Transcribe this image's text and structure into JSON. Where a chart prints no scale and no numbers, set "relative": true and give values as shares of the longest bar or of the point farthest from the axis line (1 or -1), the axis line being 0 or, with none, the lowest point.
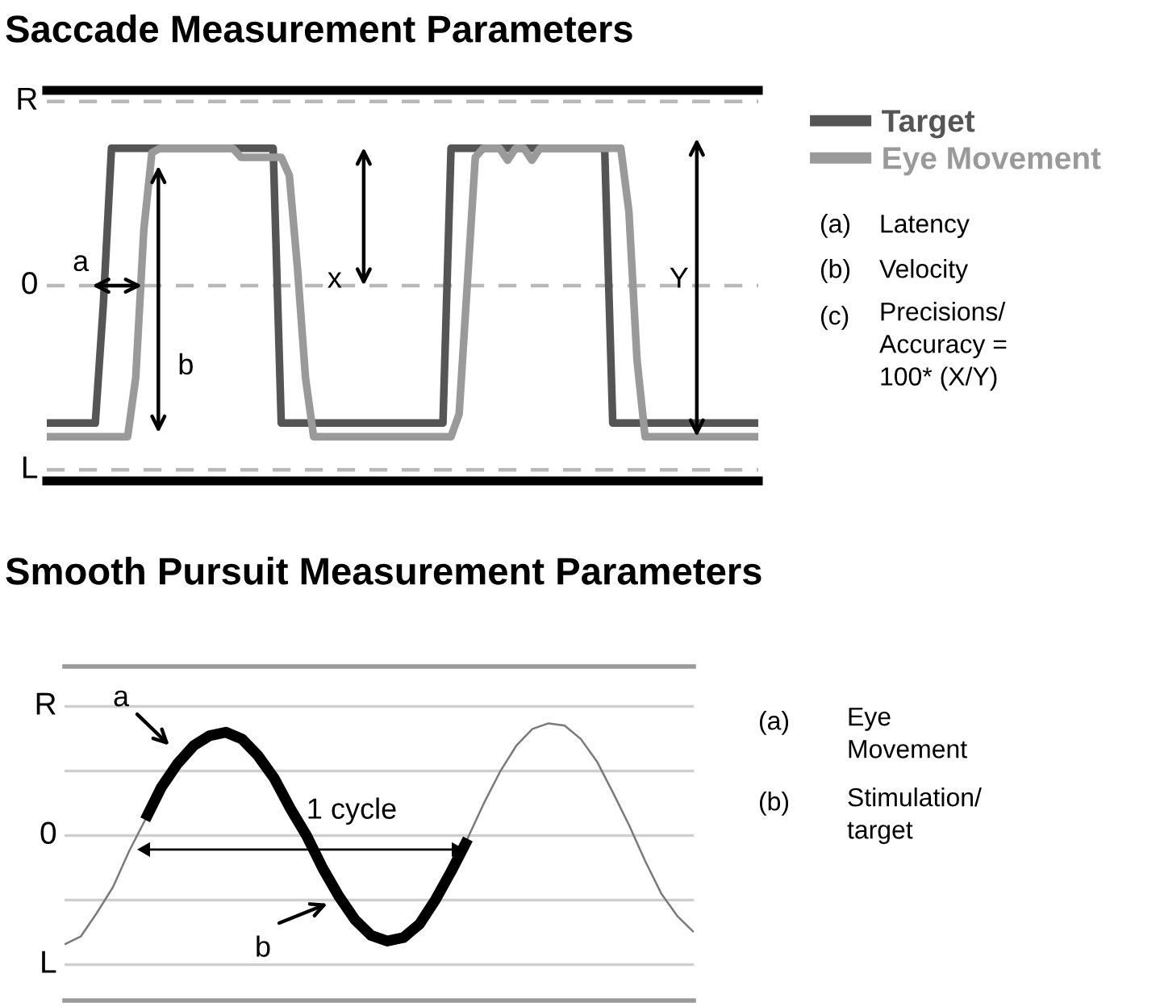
{
  "chart_data": [
    {
      "type": "line",
      "title": "Saccade Measurement Parameters",
      "relative": true,
      "categories": [
        null,
        null,
        null,
        null,
        null,
        null,
        null,
        null,
        null,
        null,
        null,
        null,
        null,
        null,
        null,
        null,
        null,
        null,
        null,
        null,
        null,
        null,
        null,
        null,
        null,
        null,
        null,
        null,
        null,
        null,
        null,
        null,
        null,
        null,
        null,
        null,
        null,
        null,
        null,
        null,
        null,
        null,
        null,
        null,
        null,
        null,
        null,
        null,
        null,
        null,
        null,
        null,
        null,
        null,
        null,
        null,
        null,
        null,
        null,
        null,
        null,
        null,
        null,
        null,
        null,
        null,
        null,
        null,
        null,
        null,
        null,
        null,
        null,
        null,
        null,
        null,
        null,
        null,
        null,
        null,
        null,
        null,
        null,
        null,
        null,
        null,
        null,
        null,
        null
      ],
      "series": [
        {
          "name": "Target",
          "color": "#555555",
          "values": [
            -0.91,
            -0.91,
            -0.91,
            -0.91,
            -0.91,
            -0.91,
            -0.91,
            -0.12,
            0.91,
            0.91,
            0.91,
            0.91,
            0.91,
            0.91,
            0.91,
            0.91,
            0.91,
            0.91,
            0.91,
            0.91,
            0.91,
            0.91,
            0.91,
            0.91,
            0.91,
            0.91,
            0.91,
            0.91,
            0.91,
            -0.91,
            -0.91,
            -0.91,
            -0.91,
            -0.91,
            -0.91,
            -0.91,
            -0.91,
            -0.91,
            -0.91,
            -0.91,
            -0.91,
            -0.91,
            -0.91,
            -0.91,
            -0.91,
            -0.91,
            -0.91,
            -0.91,
            -0.91,
            -0.91,
            0.91,
            0.91,
            0.91,
            0.91,
            0.91,
            0.91,
            0.91,
            0.91,
            0.91,
            0.91,
            0.91,
            0.91,
            0.91,
            0.91,
            0.91,
            0.91,
            0.91,
            0.91,
            0.91,
            0.91,
            -0.91,
            -0.91,
            -0.91,
            -0.91,
            -0.91,
            -0.91,
            -0.91,
            -0.91,
            -0.91,
            -0.91,
            -0.91,
            -0.91,
            -0.91,
            -0.91,
            -0.91,
            -0.91,
            -0.91,
            -0.91,
            -0.91
          ]
        },
        {
          "name": "Eye Movement",
          "color": "#9a9a9a",
          "values": [
            -1,
            -1,
            -1,
            -1,
            -1,
            -1,
            -1,
            -1,
            -1,
            -1,
            -1,
            -0.61,
            0.37,
            0.88,
            0.91,
            0.91,
            0.91,
            0.91,
            0.91,
            0.91,
            0.91,
            0.91,
            0.91,
            0.91,
            0.85,
            0.85,
            0.85,
            0.85,
            0.85,
            0.85,
            0.73,
            0.12,
            -0.61,
            -1,
            -1,
            -1,
            -1,
            -1,
            -1,
            -1,
            -1,
            -1,
            -1,
            -1,
            -1,
            -1,
            -1,
            -1,
            -1,
            -1,
            -1,
            -0.85,
            0.0,
            0.85,
            0.91,
            0.91,
            0.91,
            0.83,
            0.91,
            0.91,
            0.83,
            0.91,
            0.91,
            0.91,
            0.91,
            0.91,
            0.91,
            0.91,
            0.91,
            0.91,
            0.91,
            0.91,
            0.49,
            -0.49,
            -1,
            -1,
            -1,
            -1,
            -1,
            -1,
            -1,
            -1,
            -1,
            -1,
            -1,
            -1,
            -1,
            -1,
            -1
          ]
        }
      ],
      "ref_lines": [
        {
          "axis": "y",
          "value": 1.22,
          "label": "R",
          "color": "#b8b8b8",
          "line_style": "dashed"
        },
        {
          "axis": "y",
          "value": 0,
          "label": "0",
          "color": "#b8b8b8",
          "line_style": "dashed"
        },
        {
          "axis": "y",
          "value": -1.22,
          "label": "L",
          "color": "#b8b8b8",
          "line_style": "dashed"
        }
      ],
      "legend": "right",
      "annotations": [
        "a",
        "b",
        "x",
        "Y",
        "(a)",
        "Latency",
        "(b)",
        "Velocity",
        "(c)",
        "Precisions/\nAccuracy =\n100* (X/Y)"
      ]
    },
    {
      "type": "line",
      "title": "Smooth Pursuit Measurement Parameters",
      "relative": true,
      "categories": [
        null,
        null,
        null,
        null,
        null,
        null,
        null,
        null,
        null,
        null,
        null,
        null,
        null,
        null,
        null,
        null,
        null,
        null,
        null,
        null,
        null,
        null,
        null,
        null,
        null,
        null,
        null,
        null,
        null,
        null,
        null,
        null,
        null,
        null,
        null,
        null,
        null,
        null,
        null,
        null
      ],
      "series": [
        {
          "color": "#7a7a7a",
          "values": [
            -0.97,
            -0.9,
            -0.69,
            -0.46,
            -0.14,
            0.14,
            0.44,
            0.67,
            0.83,
            0.92,
            0.94,
            0.89,
            0.74,
            0.52,
            0.25,
            0.0,
            -0.29,
            -0.54,
            -0.76,
            -0.9,
            -0.95,
            -0.92,
            -0.8,
            -0.57,
            -0.31,
            -0.02,
            0.29,
            0.57,
            0.8,
            0.95,
            1,
            0.98,
            0.86,
            0.66,
            0.38,
            0.09,
            -0.23,
            -0.52,
            -0.72,
            -0.86
          ]
        },
        {
          "color": "#000000",
          "values": [
            null,
            null,
            null,
            null,
            null,
            0.14,
            0.43,
            0.64,
            0.8,
            0.89,
            0.92,
            0.86,
            0.71,
            0.51,
            0.24,
            0.0,
            -0.29,
            -0.54,
            -0.75,
            -0.89,
            -0.94,
            -0.91,
            -0.79,
            -0.57,
            -0.31,
            -0.03,
            null,
            null,
            null,
            null,
            null,
            null,
            null,
            null,
            null,
            null,
            null,
            null,
            null,
            null
          ]
        }
      ],
      "ref_lines": [
        {
          "axis": "y",
          "value": 1.15,
          "label": "R",
          "color": "#cfcfcf",
          "line_style": "solid"
        },
        {
          "axis": "y",
          "value": 0.575,
          "color": "#cfcfcf",
          "line_style": "solid"
        },
        {
          "axis": "y",
          "value": 0,
          "label": "0",
          "color": "#cfcfcf",
          "line_style": "solid"
        },
        {
          "axis": "y",
          "value": -0.575,
          "color": "#cfcfcf",
          "line_style": "solid"
        },
        {
          "axis": "y",
          "value": -1.15,
          "label": "L",
          "color": "#cfcfcf",
          "line_style": "solid"
        }
      ],
      "annotations": [
        "a",
        "b",
        "1 cycle",
        "(a)",
        "Eye\nMovement",
        "(b)",
        "Stimulation/\ntarget"
      ]
    }
  ]
}
